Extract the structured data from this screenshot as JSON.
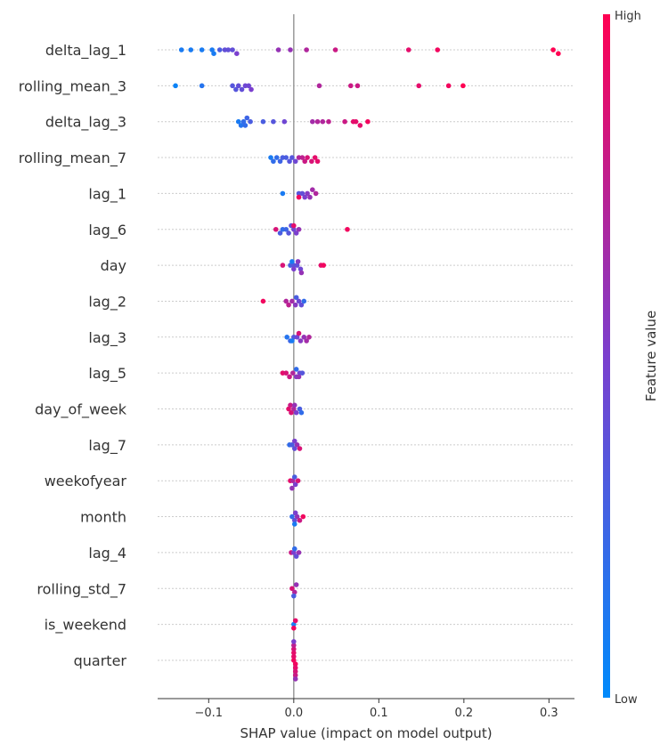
{
  "chart_data": {
    "type": "scatter",
    "subtype": "shap-beeswarm",
    "title": "",
    "xlabel": "SHAP value (impact on model output)",
    "xlim": [
      -0.16,
      0.33
    ],
    "xticks": [
      -0.1,
      0.0,
      0.1,
      0.2,
      0.3
    ],
    "xtick_labels": [
      "−0.1",
      "0.0",
      "0.1",
      "0.2",
      "0.3"
    ],
    "colorbar": {
      "label": "Feature value",
      "high": "High",
      "low": "Low",
      "low_color": "#008afb",
      "mid_color": "#7b3fce",
      "high_color": "#ff0052"
    },
    "features": [
      {
        "name": "delta_lag_1",
        "points": [
          [
            -0.132,
            0.1
          ],
          [
            -0.121,
            0.1
          ],
          [
            -0.108,
            0.1
          ],
          [
            -0.096,
            0.1
          ],
          [
            -0.094,
            0.1
          ],
          [
            -0.087,
            0.3
          ],
          [
            -0.081,
            0.4
          ],
          [
            -0.077,
            0.4
          ],
          [
            -0.072,
            0.4
          ],
          [
            -0.067,
            0.5
          ],
          [
            -0.018,
            0.6
          ],
          [
            -0.004,
            0.6
          ],
          [
            0.015,
            0.7
          ],
          [
            0.049,
            0.8
          ],
          [
            0.135,
            0.9
          ],
          [
            0.169,
            0.95
          ],
          [
            0.305,
            1.0
          ],
          [
            0.311,
            1.0
          ]
        ]
      },
      {
        "name": "rolling_mean_3",
        "points": [
          [
            -0.139,
            0.05
          ],
          [
            -0.108,
            0.15
          ],
          [
            -0.072,
            0.35
          ],
          [
            -0.068,
            0.35
          ],
          [
            -0.065,
            0.4
          ],
          [
            -0.061,
            0.4
          ],
          [
            -0.057,
            0.45
          ],
          [
            -0.053,
            0.45
          ],
          [
            -0.05,
            0.5
          ],
          [
            0.03,
            0.7
          ],
          [
            0.067,
            0.8
          ],
          [
            0.075,
            0.8
          ],
          [
            0.147,
            0.9
          ],
          [
            0.182,
            0.95
          ],
          [
            0.199,
            1.0
          ]
        ]
      },
      {
        "name": "delta_lag_3",
        "points": [
          [
            -0.065,
            0.1
          ],
          [
            -0.062,
            0.15
          ],
          [
            -0.059,
            0.2
          ],
          [
            -0.057,
            0.2
          ],
          [
            -0.055,
            0.25
          ],
          [
            -0.051,
            0.3
          ],
          [
            -0.036,
            0.3
          ],
          [
            -0.024,
            0.35
          ],
          [
            -0.011,
            0.45
          ],
          [
            0.022,
            0.65
          ],
          [
            0.028,
            0.7
          ],
          [
            0.034,
            0.7
          ],
          [
            0.041,
            0.75
          ],
          [
            0.06,
            0.8
          ],
          [
            0.07,
            0.9
          ],
          [
            0.073,
            0.9
          ],
          [
            0.078,
            0.9
          ],
          [
            0.087,
            0.95
          ]
        ]
      },
      {
        "name": "rolling_mean_7",
        "points": [
          [
            -0.027,
            0.1
          ],
          [
            -0.024,
            0.2
          ],
          [
            -0.02,
            0.2
          ],
          [
            -0.016,
            0.25
          ],
          [
            -0.013,
            0.3
          ],
          [
            -0.009,
            0.3
          ],
          [
            -0.005,
            0.35
          ],
          [
            -0.002,
            0.35
          ],
          [
            0.002,
            0.45
          ],
          [
            0.006,
            0.7
          ],
          [
            0.01,
            0.75
          ],
          [
            0.013,
            0.8
          ],
          [
            0.016,
            0.85
          ],
          [
            0.021,
            0.85
          ],
          [
            0.025,
            0.9
          ],
          [
            0.028,
            0.9
          ]
        ]
      },
      {
        "name": "lag_1",
        "points": [
          [
            -0.013,
            0.1
          ],
          [
            0.006,
            0.35
          ],
          [
            0.01,
            0.4
          ],
          [
            0.013,
            0.5
          ],
          [
            0.016,
            0.55
          ],
          [
            0.019,
            0.6
          ],
          [
            0.022,
            0.65
          ],
          [
            0.026,
            0.7
          ],
          [
            0.006,
            0.95
          ]
        ]
      },
      {
        "name": "lag_6",
        "points": [
          [
            -0.021,
            0.85
          ],
          [
            -0.016,
            0.3
          ],
          [
            -0.013,
            0.2
          ],
          [
            -0.009,
            0.25
          ],
          [
            -0.006,
            0.35
          ],
          [
            -0.003,
            0.4
          ],
          [
            0.0,
            0.45
          ],
          [
            0.003,
            0.5
          ],
          [
            0.006,
            0.6
          ],
          [
            0.0,
            0.9
          ],
          [
            0.063,
            0.95
          ]
        ]
      },
      {
        "name": "day",
        "points": [
          [
            -0.013,
            0.85
          ],
          [
            -0.004,
            0.3
          ],
          [
            0.0,
            0.35
          ],
          [
            0.004,
            0.4
          ],
          [
            0.008,
            0.45
          ],
          [
            0.0,
            0.5
          ],
          [
            0.005,
            0.55
          ],
          [
            0.009,
            0.6
          ],
          [
            -0.002,
            0.1
          ],
          [
            0.032,
            0.9
          ],
          [
            0.035,
            0.95
          ]
        ]
      },
      {
        "name": "lag_2",
        "points": [
          [
            -0.036,
            0.95
          ],
          [
            -0.009,
            0.7
          ],
          [
            -0.006,
            0.75
          ],
          [
            -0.002,
            0.65
          ],
          [
            0.002,
            0.55
          ],
          [
            0.006,
            0.45
          ],
          [
            0.009,
            0.4
          ],
          [
            0.012,
            0.2
          ],
          [
            0.003,
            0.3
          ]
        ]
      },
      {
        "name": "lag_3",
        "points": [
          [
            -0.008,
            0.15
          ],
          [
            -0.004,
            0.25
          ],
          [
            0.0,
            0.35
          ],
          [
            0.004,
            0.45
          ],
          [
            0.008,
            0.55
          ],
          [
            0.012,
            0.6
          ],
          [
            0.015,
            0.65
          ],
          [
            0.018,
            0.7
          ],
          [
            0.006,
            0.85
          ],
          [
            -0.002,
            0.1
          ]
        ]
      },
      {
        "name": "lag_5",
        "points": [
          [
            -0.013,
            0.9
          ],
          [
            -0.009,
            0.85
          ],
          [
            -0.005,
            0.8
          ],
          [
            -0.001,
            0.7
          ],
          [
            0.003,
            0.55
          ],
          [
            0.007,
            0.45
          ],
          [
            0.01,
            0.35
          ],
          [
            0.006,
            0.6
          ],
          [
            0.003,
            0.2
          ]
        ]
      },
      {
        "name": "day_of_week",
        "points": [
          [
            -0.006,
            0.9
          ],
          [
            -0.003,
            0.85
          ],
          [
            0.0,
            0.7
          ],
          [
            0.003,
            0.5
          ],
          [
            0.007,
            0.3
          ],
          [
            0.009,
            0.2
          ],
          [
            -0.004,
            0.8
          ],
          [
            0.001,
            0.6
          ]
        ]
      },
      {
        "name": "lag_7",
        "points": [
          [
            -0.005,
            0.2
          ],
          [
            -0.002,
            0.3
          ],
          [
            0.001,
            0.4
          ],
          [
            0.004,
            0.6
          ],
          [
            0.007,
            0.85
          ],
          [
            0.001,
            0.5
          ]
        ]
      },
      {
        "name": "weekofyear",
        "points": [
          [
            -0.004,
            0.9
          ],
          [
            -0.001,
            0.7
          ],
          [
            0.002,
            0.5
          ],
          [
            0.005,
            0.85
          ],
          [
            0.001,
            0.3
          ],
          [
            -0.002,
            0.6
          ]
        ]
      },
      {
        "name": "month",
        "points": [
          [
            -0.002,
            0.2
          ],
          [
            0.001,
            0.4
          ],
          [
            0.004,
            0.6
          ],
          [
            0.007,
            0.8
          ],
          [
            0.011,
            0.95
          ],
          [
            0.002,
            0.5
          ],
          [
            0.001,
            0.1
          ]
        ]
      },
      {
        "name": "lag_4",
        "points": [
          [
            -0.003,
            0.8
          ],
          [
            0.0,
            0.5
          ],
          [
            0.003,
            0.4
          ],
          [
            0.006,
            0.6
          ],
          [
            0.001,
            0.2
          ]
        ]
      },
      {
        "name": "rolling_std_7",
        "points": [
          [
            -0.002,
            0.85
          ],
          [
            0.001,
            0.7
          ],
          [
            0.003,
            0.6
          ],
          [
            0.0,
            0.3
          ]
        ]
      },
      {
        "name": "is_weekend",
        "points": [
          [
            0.0,
            0.1
          ],
          [
            0.0,
            0.95
          ],
          [
            0.002,
            0.9
          ]
        ]
      },
      {
        "name": "quarter",
        "points": [
          [
            0.0,
            0.95
          ],
          [
            0.002,
            0.95
          ],
          [
            0.0,
            0.9
          ],
          [
            0.002,
            0.9
          ],
          [
            0.0,
            0.9
          ],
          [
            0.002,
            0.85
          ],
          [
            0.0,
            0.85
          ],
          [
            0.002,
            0.8
          ],
          [
            0.0,
            0.75
          ],
          [
            0.002,
            0.6
          ],
          [
            0.0,
            0.5
          ]
        ]
      }
    ]
  }
}
